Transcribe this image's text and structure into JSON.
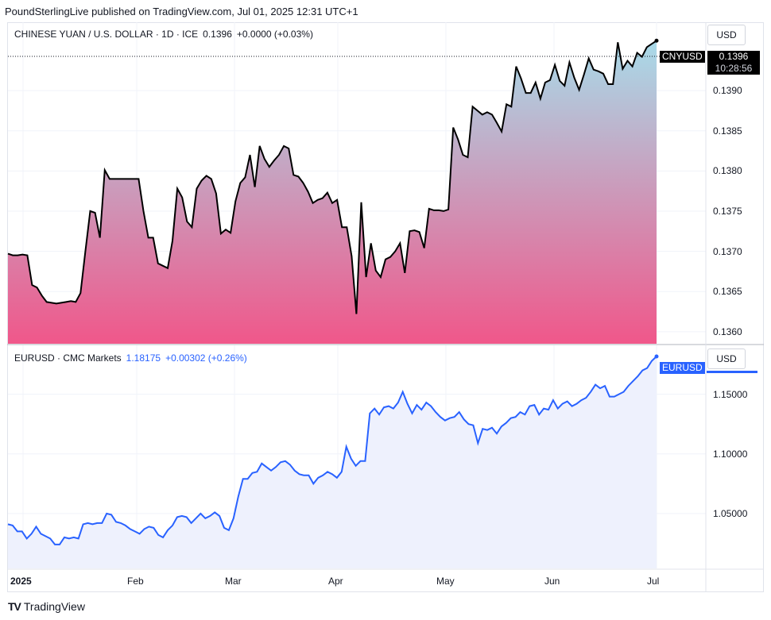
{
  "header": {
    "published": "PoundSterlingLive published on TradingView.com, Jul 01, 2025 12:31 UTC+1"
  },
  "pane1": {
    "title": "CHINESE YUAN / U.S. DOLLAR · 1D · ICE",
    "last": "0.1396",
    "change": "+0.0000 (+0.03%)",
    "currency": "USD",
    "symbol_tag": "CNYUSD",
    "price_tag": "0.1396",
    "countdown": "10:28:56",
    "yticks": [
      "0.1390",
      "0.1385",
      "0.1380",
      "0.1375",
      "0.1370",
      "0.1365",
      "0.1360"
    ]
  },
  "pane2": {
    "title": "EURUSD · CMC Markets",
    "last": "1.18175",
    "change": "+0.00302 (+0.26%)",
    "currency": "USD",
    "symbol_tag": "EURUSD",
    "yticks": [
      "1.15000",
      "1.10000",
      "1.05000"
    ]
  },
  "xaxis": {
    "labels": [
      "2025",
      "Feb",
      "Mar",
      "Apr",
      "May",
      "Jun",
      "Jul"
    ]
  },
  "footer": {
    "brand": "TradingView"
  },
  "colors": {
    "cny_line": "#000000",
    "cny_fill_top": "#a8dbe9",
    "cny_fill_bottom": "#f0578a",
    "eur_line": "#2962ff",
    "eur_fill": "#eef1fd",
    "tag_dark": "#000000",
    "tag_blue": "#2962ff"
  },
  "chart_data": [
    {
      "type": "area",
      "series": [
        {
          "name": "CNYUSD",
          "values": [
            0.13697,
            0.13695,
            0.13695,
            0.13696,
            0.13695,
            0.13658,
            0.13655,
            0.13645,
            0.13637,
            0.13636,
            0.13635,
            0.13636,
            0.13637,
            0.13638,
            0.13637,
            0.13648,
            0.137,
            0.1375,
            0.13748,
            0.13717,
            0.13801,
            0.1379,
            0.1379,
            0.1379,
            0.1379,
            0.1379,
            0.1379,
            0.1379,
            0.1375,
            0.13717,
            0.13717,
            0.13685,
            0.13682,
            0.13679,
            0.13713,
            0.13778,
            0.13767,
            0.13737,
            0.1373,
            0.13778,
            0.13788,
            0.13794,
            0.1379,
            0.13772,
            0.13722,
            0.13727,
            0.13723,
            0.13762,
            0.13785,
            0.13792,
            0.1382,
            0.1378,
            0.13831,
            0.13815,
            0.13805,
            0.13813,
            0.1382,
            0.13831,
            0.13828,
            0.13795,
            0.13793,
            0.13785,
            0.13774,
            0.1376,
            0.13764,
            0.13766,
            0.13773,
            0.1376,
            0.13764,
            0.1373,
            0.1373,
            0.13694,
            0.13622,
            0.13761,
            0.13668,
            0.1371,
            0.13676,
            0.13668,
            0.1369,
            0.13693,
            0.137,
            0.1371,
            0.13673,
            0.13725,
            0.13726,
            0.13724,
            0.13704,
            0.13753,
            0.13751,
            0.13751,
            0.1375,
            0.13752,
            0.13854,
            0.13839,
            0.1382,
            0.13817,
            0.1388,
            0.13875,
            0.1387,
            0.13873,
            0.1387,
            0.1386,
            0.13849,
            0.13883,
            0.1388,
            0.1393,
            0.13915,
            0.13897,
            0.13897,
            0.1391,
            0.1389,
            0.1391,
            0.13913,
            0.13932,
            0.13912,
            0.13906,
            0.13935,
            0.13916,
            0.13901,
            0.1392,
            0.1394,
            0.13926,
            0.13924,
            0.13921,
            0.13908,
            0.13908,
            0.1396,
            0.13927,
            0.13937,
            0.1393,
            0.13947,
            0.13942,
            0.13954,
            0.13958,
            0.13962
          ]
        }
      ],
      "ylim": [
        0.13585,
        0.13985
      ]
    },
    {
      "type": "area",
      "series": [
        {
          "name": "EURUSD",
          "values": [
            1.041,
            1.04,
            1.035,
            1.035,
            1.029,
            1.033,
            1.039,
            1.033,
            1.031,
            1.029,
            1.024,
            1.024,
            1.03,
            1.029,
            1.03,
            1.029,
            1.041,
            1.042,
            1.041,
            1.042,
            1.042,
            1.05,
            1.049,
            1.043,
            1.042,
            1.04,
            1.037,
            1.035,
            1.033,
            1.037,
            1.039,
            1.038,
            1.032,
            1.03,
            1.036,
            1.04,
            1.047,
            1.048,
            1.047,
            1.042,
            1.046,
            1.05,
            1.046,
            1.048,
            1.051,
            1.048,
            1.038,
            1.036,
            1.046,
            1.064,
            1.079,
            1.079,
            1.084,
            1.085,
            1.092,
            1.089,
            1.086,
            1.089,
            1.093,
            1.094,
            1.091,
            1.086,
            1.083,
            1.082,
            1.082,
            1.075,
            1.08,
            1.082,
            1.085,
            1.083,
            1.08,
            1.085,
            1.106,
            1.096,
            1.09,
            1.094,
            1.094,
            1.134,
            1.138,
            1.133,
            1.139,
            1.14,
            1.138,
            1.143,
            1.152,
            1.142,
            1.134,
            1.141,
            1.137,
            1.143,
            1.14,
            1.135,
            1.131,
            1.128,
            1.13,
            1.131,
            1.135,
            1.129,
            1.125,
            1.124,
            1.109,
            1.121,
            1.12,
            1.122,
            1.117,
            1.123,
            1.126,
            1.13,
            1.131,
            1.135,
            1.133,
            1.14,
            1.141,
            1.133,
            1.138,
            1.137,
            1.145,
            1.138,
            1.142,
            1.144,
            1.14,
            1.142,
            1.145,
            1.147,
            1.152,
            1.158,
            1.155,
            1.157,
            1.148,
            1.148,
            1.15,
            1.152,
            1.157,
            1.161,
            1.165,
            1.17,
            1.172,
            1.178,
            1.1817
          ]
        }
      ],
      "ylim": [
        1.004,
        1.191
      ]
    }
  ]
}
